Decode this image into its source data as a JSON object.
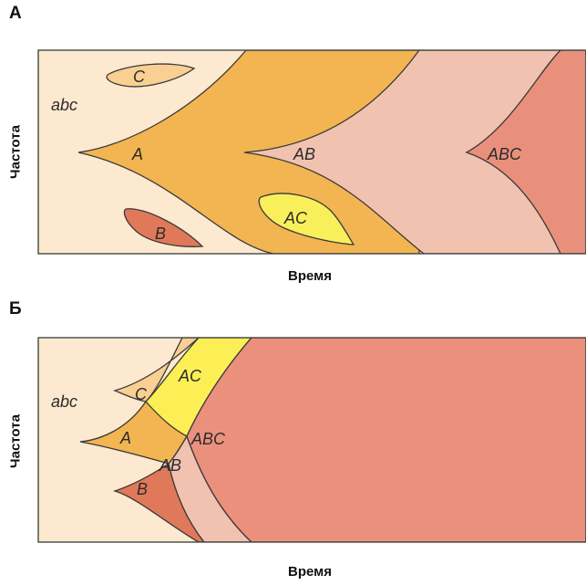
{
  "panel_a": {
    "letter": "A",
    "x_label": "Время",
    "y_label": "Частота",
    "regions": {
      "abc": "abc",
      "C": "C",
      "A": "A",
      "B": "B",
      "AB": "AB",
      "AC": "AC",
      "ABC": "ABC"
    },
    "colors": {
      "abc": "#fde9cf",
      "C": "#f9cf93",
      "A": "#f2b551",
      "B": "#e0795a",
      "AB": "#f2c2b0",
      "AC": "#f9ef5a",
      "ABC": "#e9907c"
    }
  },
  "panel_b": {
    "letter": "Б",
    "x_label": "Время",
    "y_label": "Частота",
    "regions": {
      "abc": "abc",
      "C": "C",
      "AC": "AC",
      "A": "A",
      "ABC": "ABC",
      "AB": "AB",
      "B": "B"
    },
    "colors": {
      "abc": "#fde9cf",
      "C": "#f9cf93",
      "AC": "#fbef55",
      "A": "#f2b551",
      "ABC": "#ec907e",
      "AB": "#f2c2b0",
      "B": "#e0795a"
    }
  }
}
